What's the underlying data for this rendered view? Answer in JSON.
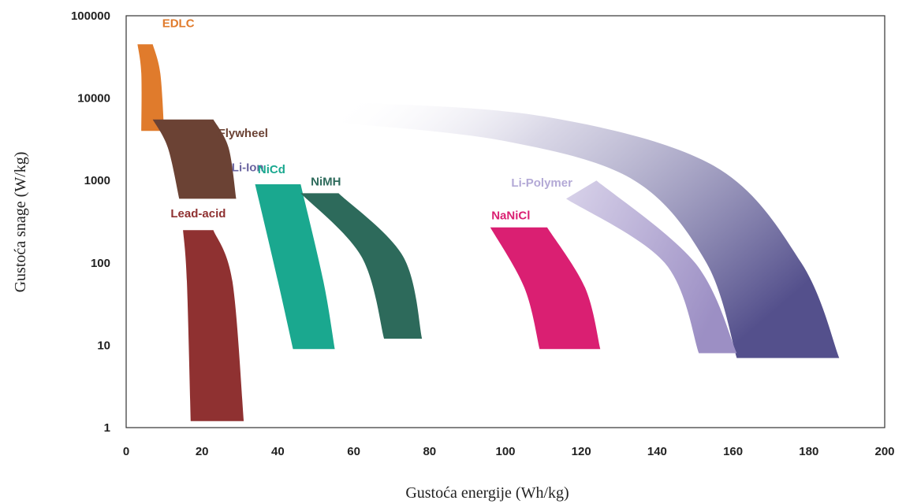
{
  "chart_data": {
    "type": "area",
    "title": "",
    "xlabel": "Gustoća energije (Wh/kg)",
    "ylabel": "Gustoća snage (W/kg)",
    "xlim": [
      0,
      200
    ],
    "ylim": [
      1,
      100000
    ],
    "yscale": "log",
    "x_ticks": [
      0,
      20,
      40,
      60,
      80,
      100,
      120,
      140,
      160,
      180,
      200
    ],
    "x_tick_labels": [
      "0",
      "20",
      "40",
      "60",
      "80",
      "100",
      "120",
      "140",
      "160",
      "180",
      "200"
    ],
    "y_ticks": [
      1,
      10,
      100,
      1000,
      10000,
      100000
    ],
    "y_tick_labels": [
      "1",
      "10",
      "100",
      "1000",
      "10000",
      "100000"
    ],
    "grid": false,
    "series": [
      {
        "name": "EDLC",
        "color": "#e07b2c",
        "energy_range": [
          3,
          10
        ],
        "power_range": [
          4000,
          45000
        ],
        "bounds": {
          "left": [
            [
              3,
              45000
            ],
            [
              4,
              20000
            ],
            [
              4,
              4000
            ]
          ],
          "right": [
            [
              7,
              45000
            ],
            [
              9,
              20000
            ],
            [
              10,
              4000
            ]
          ]
        }
      },
      {
        "name": "Flywheel",
        "color": "#6b4234",
        "energy_range": [
          7,
          29
        ],
        "power_range": [
          600,
          5500
        ],
        "bounds": {
          "left": [
            [
              7,
              5500
            ],
            [
              11,
              2500
            ],
            [
              14,
              600
            ]
          ],
          "right": [
            [
              23,
              5500
            ],
            [
              27,
              2500
            ],
            [
              29,
              600
            ]
          ]
        }
      },
      {
        "name": "Lead-acid",
        "color": "#8f3131",
        "energy_range": [
          15,
          31
        ],
        "power_range": [
          1.2,
          250
        ],
        "bounds": {
          "left": [
            [
              15,
              250
            ],
            [
              16,
              60
            ],
            [
              17,
              1.2
            ]
          ],
          "right": [
            [
              23,
              250
            ],
            [
              28,
              60
            ],
            [
              31,
              1.2
            ]
          ]
        }
      },
      {
        "name": "NiCd",
        "color": "#1aa88f",
        "energy_range": [
          34,
          55
        ],
        "power_range": [
          9,
          900
        ],
        "bounds": {
          "left": [
            [
              34,
              900
            ],
            [
              40,
              60
            ],
            [
              44,
              9
            ]
          ],
          "right": [
            [
              46,
              900
            ],
            [
              52,
              60
            ],
            [
              55,
              9
            ]
          ]
        }
      },
      {
        "name": "NiMH",
        "color": "#2d6a5b",
        "energy_range": [
          46,
          78
        ],
        "power_range": [
          12,
          700
        ],
        "bounds": {
          "left": [
            [
              46,
              700
            ],
            [
              62,
              120
            ],
            [
              68,
              12
            ]
          ],
          "right": [
            [
              56,
              700
            ],
            [
              73,
              120
            ],
            [
              78,
              12
            ]
          ]
        }
      },
      {
        "name": "NaNiCl",
        "color": "#da1f72",
        "energy_range": [
          96,
          125
        ],
        "power_range": [
          9,
          270
        ],
        "bounds": {
          "left": [
            [
              96,
              270
            ],
            [
              105,
              50
            ],
            [
              109,
              9
            ]
          ],
          "right": [
            [
              111,
              270
            ],
            [
              121,
              50
            ],
            [
              125,
              9
            ]
          ]
        }
      },
      {
        "name": "Li-Polymer",
        "color": "#a89ccb",
        "energy_range": [
          116,
          161
        ],
        "power_range": [
          8,
          1000
        ],
        "bounds": {
          "left": [
            [
              116,
              600
            ],
            [
              142,
              100
            ],
            [
              151,
              8
            ]
          ],
          "right": [
            [
              124,
              1000
            ],
            [
              150,
              100
            ],
            [
              161,
              8
            ]
          ]
        }
      },
      {
        "name": "Li-Ion",
        "color": "#5a5890",
        "energy_range": [
          57,
          188
        ],
        "power_range": [
          7,
          9000
        ],
        "bounds": {
          "left": [
            [
              57,
              5000
            ],
            [
              100,
              3000
            ],
            [
              134,
              1000
            ],
            [
              153,
              100
            ],
            [
              161,
              7
            ]
          ],
          "right": [
            [
              57,
              9000
            ],
            [
              110,
              6000
            ],
            [
              155,
              1500
            ],
            [
              178,
              100
            ],
            [
              188,
              7
            ]
          ]
        }
      }
    ]
  }
}
